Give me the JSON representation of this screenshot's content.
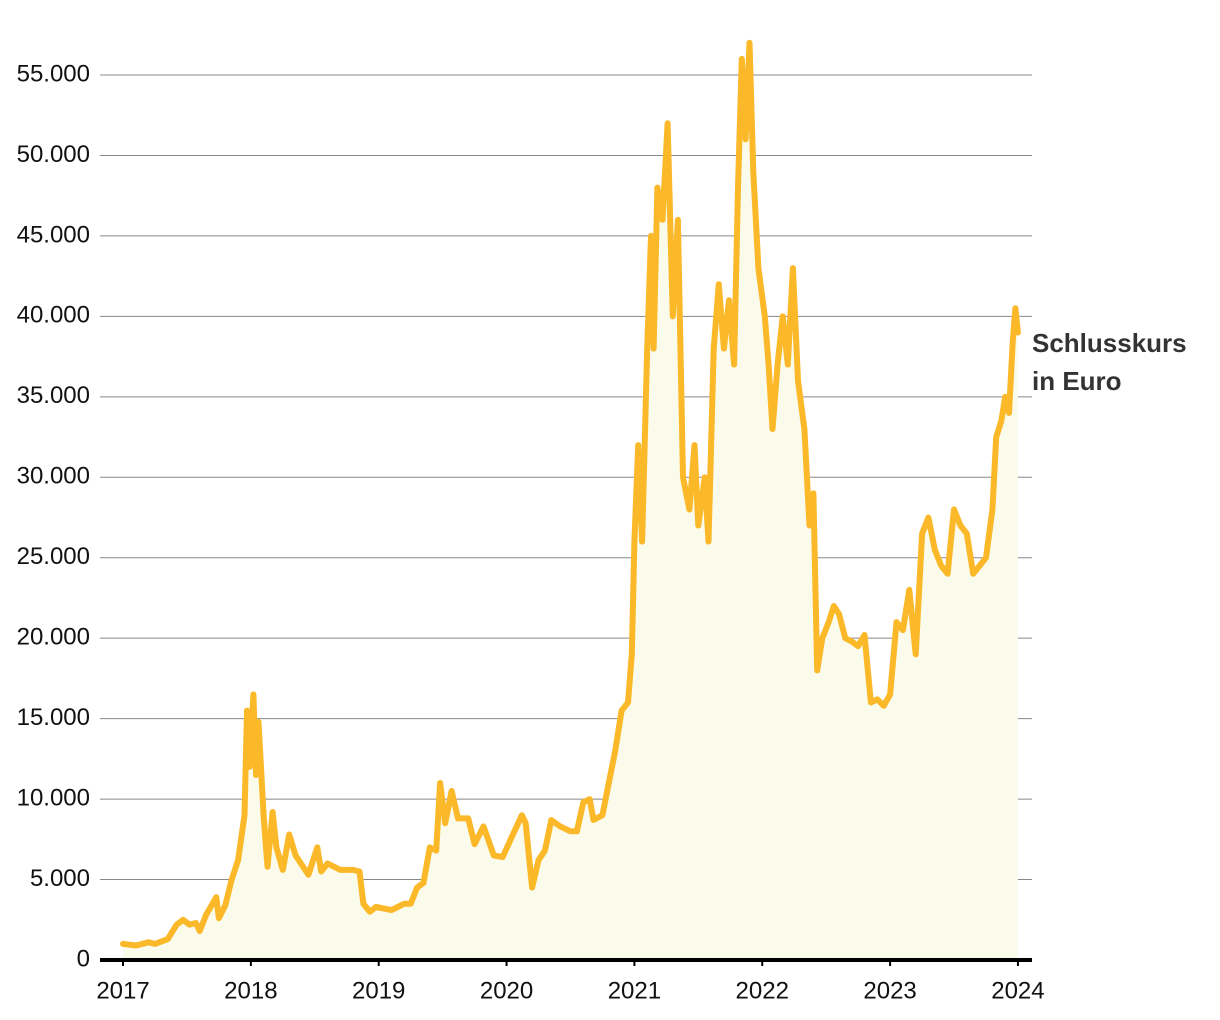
{
  "chart_data": {
    "type": "line",
    "x": [
      2017.0,
      2017.1,
      2017.2,
      2017.25,
      2017.35,
      2017.42,
      2017.47,
      2017.52,
      2017.57,
      2017.6,
      2017.65,
      2017.7,
      2017.73,
      2017.75,
      2017.8,
      2017.85,
      2017.9,
      2017.95,
      2017.97,
      2017.99,
      2018.02,
      2018.04,
      2018.06,
      2018.1,
      2018.13,
      2018.17,
      2018.2,
      2018.25,
      2018.3,
      2018.35,
      2018.45,
      2018.52,
      2018.55,
      2018.6,
      2018.7,
      2018.8,
      2018.85,
      2018.88,
      2018.93,
      2018.98,
      2019.1,
      2019.2,
      2019.25,
      2019.3,
      2019.35,
      2019.4,
      2019.45,
      2019.48,
      2019.52,
      2019.57,
      2019.62,
      2019.7,
      2019.75,
      2019.82,
      2019.9,
      2019.97,
      2020.05,
      2020.12,
      2020.15,
      2020.2,
      2020.25,
      2020.3,
      2020.35,
      2020.42,
      2020.5,
      2020.55,
      2020.6,
      2020.65,
      2020.68,
      2020.75,
      2020.8,
      2020.85,
      2020.9,
      2020.95,
      2020.98,
      2021.0,
      2021.03,
      2021.06,
      2021.1,
      2021.13,
      2021.15,
      2021.18,
      2021.22,
      2021.26,
      2021.3,
      2021.34,
      2021.38,
      2021.43,
      2021.47,
      2021.5,
      2021.55,
      2021.58,
      2021.62,
      2021.66,
      2021.7,
      2021.74,
      2021.78,
      2021.81,
      2021.84,
      2021.87,
      2021.9,
      2021.93,
      2021.97,
      2022.02,
      2022.05,
      2022.08,
      2022.12,
      2022.16,
      2022.2,
      2022.24,
      2022.28,
      2022.33,
      2022.37,
      2022.4,
      2022.43,
      2022.47,
      2022.52,
      2022.56,
      2022.6,
      2022.65,
      2022.7,
      2022.75,
      2022.8,
      2022.85,
      2022.9,
      2022.95,
      2023.0,
      2023.05,
      2023.1,
      2023.15,
      2023.2,
      2023.25,
      2023.3,
      2023.35,
      2023.4,
      2023.45,
      2023.5,
      2023.55,
      2023.6,
      2023.65,
      2023.7,
      2023.75,
      2023.8,
      2023.83,
      2023.87,
      2023.9,
      2023.93,
      2023.96,
      2023.98,
      2024.0
    ],
    "series": [
      {
        "name": "Schlusskurs in Euro",
        "color": "#fbb829",
        "values": [
          1000,
          900,
          1100,
          1000,
          1300,
          2200,
          2500,
          2200,
          2300,
          1800,
          2800,
          3500,
          3900,
          2600,
          3400,
          5000,
          6200,
          9000,
          15500,
          12000,
          16500,
          11500,
          14800,
          9000,
          5800,
          9200,
          7000,
          5600,
          7800,
          6500,
          5300,
          7000,
          5500,
          6000,
          5600,
          5600,
          5500,
          3500,
          3000,
          3300,
          3100,
          3500,
          3500,
          4500,
          4800,
          7000,
          6800,
          11000,
          8500,
          10500,
          8800,
          8800,
          7200,
          8300,
          6500,
          6400,
          7800,
          9000,
          8500,
          4500,
          6200,
          6800,
          8700,
          8300,
          8000,
          8000,
          9800,
          10000,
          8700,
          9000,
          11000,
          13000,
          15500,
          16000,
          19000,
          26000,
          32000,
          26000,
          38000,
          45000,
          38000,
          48000,
          46000,
          52000,
          40000,
          46000,
          30000,
          28000,
          32000,
          27000,
          30000,
          26000,
          38000,
          42000,
          38000,
          41000,
          37000,
          48000,
          56000,
          51000,
          57000,
          49000,
          43000,
          40000,
          37000,
          33000,
          37000,
          40000,
          37000,
          43000,
          36000,
          33000,
          27000,
          29000,
          18000,
          20000,
          21000,
          22000,
          21500,
          20000,
          19800,
          19500,
          20200,
          16000,
          16200,
          15800,
          16500,
          21000,
          20500,
          23000,
          19000,
          26500,
          27500,
          25500,
          24500,
          24000,
          28000,
          27000,
          26500,
          24000,
          24500,
          25000,
          28000,
          32500,
          33500,
          35000,
          34000,
          38500,
          40500,
          39000
        ]
      }
    ],
    "xlim": [
      2016.82,
      2024.11
    ],
    "xticks": [
      2017,
      2018,
      2019,
      2020,
      2021,
      2022,
      2023,
      2024
    ],
    "ylim": [
      0,
      58400
    ],
    "yticks": [
      0,
      {
        "value": 5000,
        "label": "5.000"
      },
      {
        "value": 10000,
        "label": "10.000"
      },
      {
        "value": 15000,
        "label": "15.000"
      },
      {
        "value": 20000,
        "label": "20.000"
      },
      {
        "value": 25000,
        "label": "25.000"
      },
      {
        "value": 30000,
        "label": "30.000"
      },
      {
        "value": 35000,
        "label": "35.000"
      },
      {
        "value": 40000,
        "label": "40.000"
      },
      {
        "value": 45000,
        "label": "45.000"
      },
      {
        "value": 50000,
        "label": "50.000"
      },
      {
        "value": 55000,
        "label": "55.000"
      }
    ],
    "grid": true,
    "area_color": "#fafbea"
  }
}
